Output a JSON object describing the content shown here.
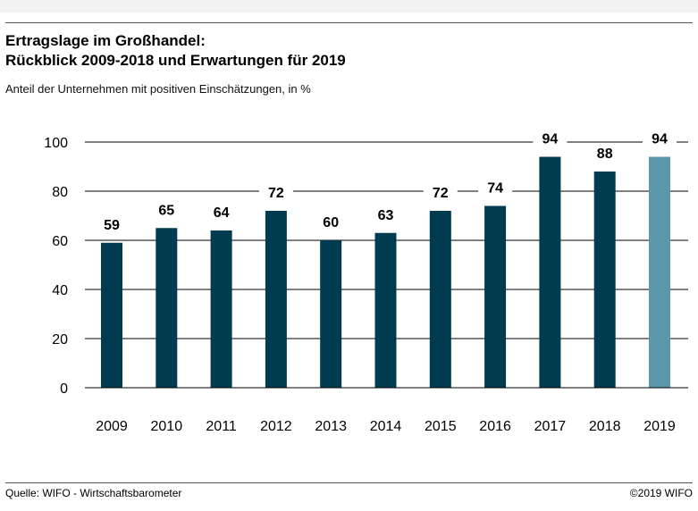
{
  "header": {
    "title_line1": "Ertragslage im Großhandel:",
    "title_line2": "Rückblick 2009-2018 und Erwartungen für 2019",
    "subtitle": "Anteil der Unternehmen mit positiven Einschätzungen, in %"
  },
  "footer": {
    "source": "Quelle: WIFO - Wirtschaftsbarometer",
    "copyright": "©2019 WIFO"
  },
  "chart_data": {
    "type": "bar",
    "categories": [
      "2009",
      "2010",
      "2011",
      "2012",
      "2013",
      "2014",
      "2015",
      "2016",
      "2017",
      "2018",
      "2019"
    ],
    "series": [
      {
        "values": [
          59,
          65,
          64,
          72,
          60,
          63,
          72,
          74,
          94,
          88,
          94
        ]
      }
    ],
    "highlight_index": 10,
    "colors": {
      "main": "#003b50",
      "highlight": "#5b96ab",
      "grid": "#000000"
    },
    "ylim": [
      0,
      100
    ],
    "yticks": [
      0,
      20,
      40,
      60,
      80,
      100
    ],
    "grid": true,
    "data_labels": true
  }
}
